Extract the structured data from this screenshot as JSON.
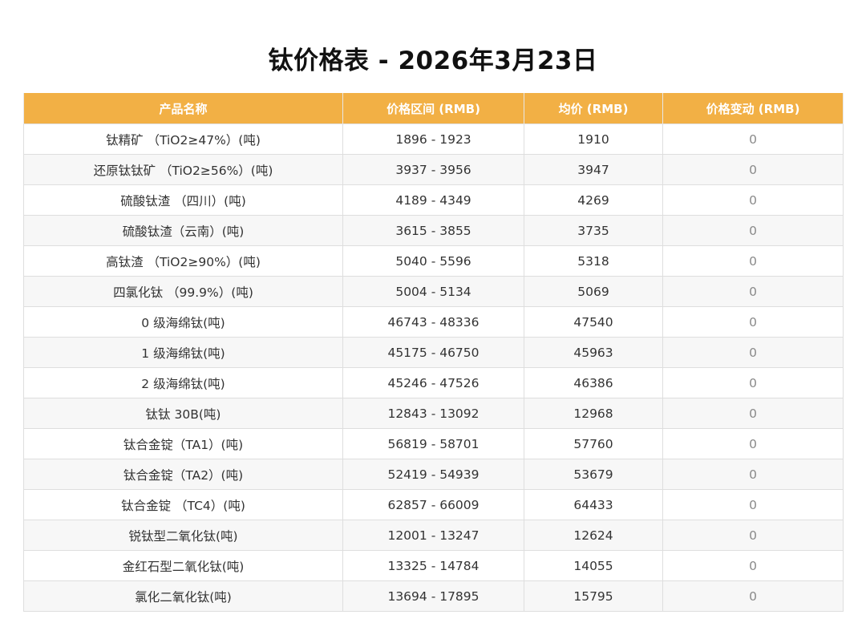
{
  "title": "钛价格表 - 2026年3月23日",
  "colors": {
    "header_bg": "#f2b045",
    "header_text": "#ffffff",
    "stripe": "#f7f7f7"
  },
  "table": {
    "headers": [
      "产品名称",
      "价格区间 (RMB)",
      "均价 (RMB)",
      "价格变动 (RMB)"
    ],
    "rows": [
      {
        "name": "钛精矿 （TiO2≥47%）(吨)",
        "range": "1896 - 1923",
        "avg": "1910",
        "change": "0"
      },
      {
        "name": "还原钛钛矿 （TiO2≥56%）(吨)",
        "range": "3937 - 3956",
        "avg": "3947",
        "change": "0"
      },
      {
        "name": "硫酸钛渣 （四川）(吨)",
        "range": "4189 - 4349",
        "avg": "4269",
        "change": "0"
      },
      {
        "name": "硫酸钛渣（云南）(吨)",
        "range": "3615 - 3855",
        "avg": "3735",
        "change": "0"
      },
      {
        "name": "高钛渣 （TiO2≥90%）(吨)",
        "range": "5040 - 5596",
        "avg": "5318",
        "change": "0"
      },
      {
        "name": "四氯化钛 （99.9%）(吨)",
        "range": "5004 - 5134",
        "avg": "5069",
        "change": "0"
      },
      {
        "name": "0 级海绵钛(吨)",
        "range": "46743 - 48336",
        "avg": "47540",
        "change": "0"
      },
      {
        "name": "1 级海绵钛(吨)",
        "range": "45175 - 46750",
        "avg": "45963",
        "change": "0"
      },
      {
        "name": "2 级海绵钛(吨)",
        "range": "45246 - 47526",
        "avg": "46386",
        "change": "0"
      },
      {
        "name": "钛钛 30B(吨)",
        "range": "12843 - 13092",
        "avg": "12968",
        "change": "0"
      },
      {
        "name": "钛合金锭（TA1）(吨)",
        "range": "56819 - 58701",
        "avg": "57760",
        "change": "0"
      },
      {
        "name": "钛合金锭（TA2）(吨)",
        "range": "52419 - 54939",
        "avg": "53679",
        "change": "0"
      },
      {
        "name": "钛合金锭 （TC4）(吨)",
        "range": "62857 - 66009",
        "avg": "64433",
        "change": "0"
      },
      {
        "name": "锐钛型二氧化钛(吨)",
        "range": "12001 - 13247",
        "avg": "12624",
        "change": "0"
      },
      {
        "name": "金红石型二氧化钛(吨)",
        "range": "13325 - 14784",
        "avg": "14055",
        "change": "0"
      },
      {
        "name": "氯化二氧化钛(吨)",
        "range": "13694 - 17895",
        "avg": "15795",
        "change": "0"
      }
    ]
  }
}
